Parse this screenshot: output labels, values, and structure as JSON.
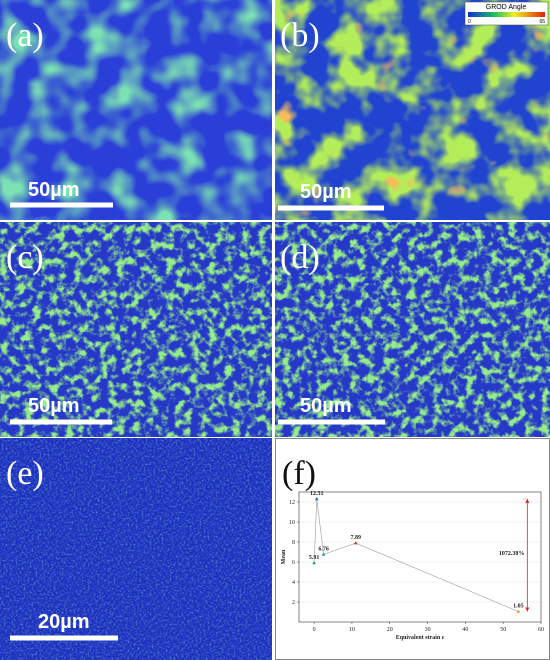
{
  "panels": [
    {
      "label": "(a)",
      "scale_bar": "50µm"
    },
    {
      "label": "(b)",
      "scale_bar": "50µm",
      "legend": {
        "title": "GROD Angle",
        "min": 0,
        "max": 65
      }
    },
    {
      "label": "(c)",
      "scale_bar": "50µm"
    },
    {
      "label": "(d)",
      "scale_bar": "50µm"
    },
    {
      "label": "(e)",
      "scale_bar": "20µm"
    },
    {
      "label": "(f)"
    }
  ],
  "chart_data": {
    "type": "line",
    "x_label": "Equivalent strain ε",
    "y_label": "Mean",
    "x": [
      0,
      0.7,
      2.5,
      11,
      54
    ],
    "values": [
      5.91,
      12.31,
      6.76,
      7.89,
      1.05
    ],
    "point_colors": [
      "#2a9d4a",
      "#2b6cb0",
      "#1fa0a0",
      "#d03030",
      "#e0a020"
    ],
    "line_color": "#9a9a9a",
    "xlim": [
      -4,
      60
    ],
    "xticks": [
      0,
      10,
      20,
      30,
      40,
      50,
      60
    ],
    "ylim": [
      0,
      13
    ],
    "yticks": [
      2,
      4,
      6,
      8,
      10,
      12
    ],
    "grid": true,
    "annotation": {
      "text": "1072.38%",
      "color": "#e02020"
    }
  }
}
